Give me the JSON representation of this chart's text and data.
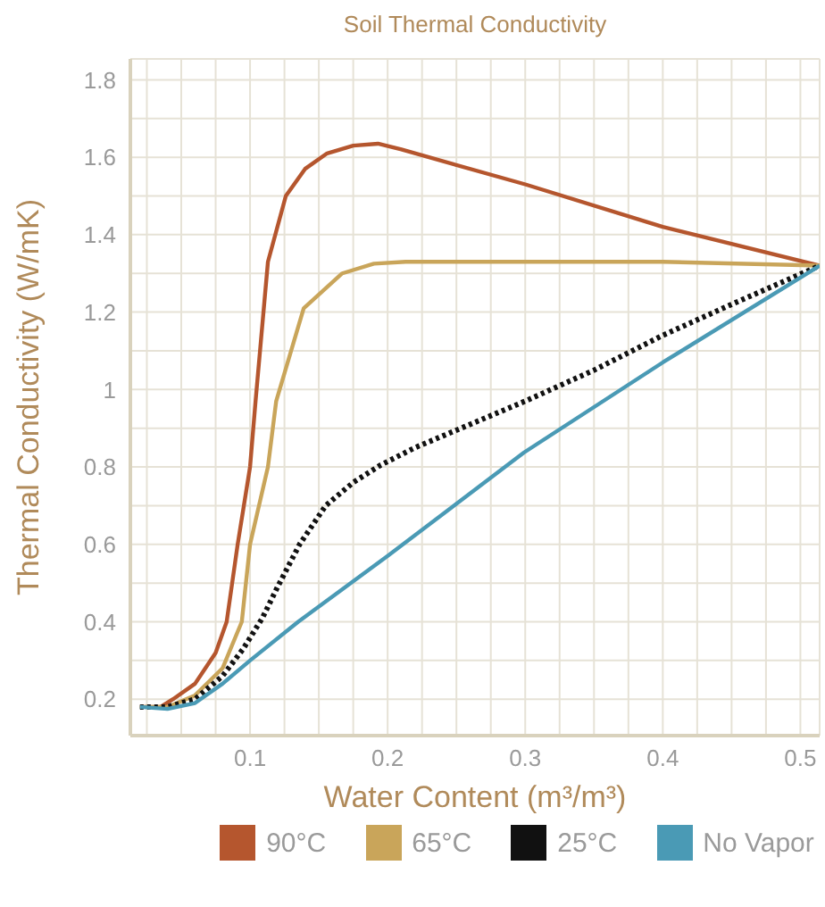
{
  "chart_data": {
    "type": "line",
    "title": "Soil Thermal Conductivity",
    "xlabel": "Water Content (m³/m³)",
    "ylabel": "Thermal Conductivity (W/mK)",
    "xlim": [
      0.013,
      0.514
    ],
    "ylim": [
      0.106,
      1.854
    ],
    "xticks": [
      {
        "value": 0.025,
        "label": null
      },
      {
        "value": 0.05,
        "label": null
      },
      {
        "value": 0.075,
        "label": null
      },
      0.1,
      {
        "value": 0.125,
        "label": null
      },
      {
        "value": 0.15,
        "label": null
      },
      {
        "value": 0.175,
        "label": null
      },
      0.2,
      {
        "value": 0.225,
        "label": null
      },
      {
        "value": 0.25,
        "label": null
      },
      {
        "value": 0.275,
        "label": null
      },
      0.3,
      {
        "value": 0.325,
        "label": null
      },
      {
        "value": 0.35,
        "label": null
      },
      {
        "value": 0.375,
        "label": null
      },
      0.4,
      {
        "value": 0.425,
        "label": null
      },
      {
        "value": 0.45,
        "label": null
      },
      {
        "value": 0.475,
        "label": null
      },
      0.5
    ],
    "yticks": [
      0.2,
      {
        "value": 0.3,
        "label": null
      },
      0.4,
      {
        "value": 0.5,
        "label": null
      },
      0.6,
      {
        "value": 0.7,
        "label": null
      },
      0.8,
      {
        "value": 0.9,
        "label": null
      },
      1,
      {
        "value": 1.1,
        "label": null
      },
      1.2,
      {
        "value": 1.3,
        "label": null
      },
      1.4,
      {
        "value": 1.5,
        "label": null
      },
      1.6,
      {
        "value": 1.7,
        "label": null
      },
      1.8
    ],
    "grid": true,
    "legend": "bottom",
    "series": [
      {
        "name": "90°C",
        "color": "#b5562e",
        "line_style": "solid",
        "x": [
          0.02,
          0.035,
          0.044,
          0.06,
          0.075,
          0.083,
          0.091,
          0.1,
          0.104,
          0.113,
          0.126,
          0.14,
          0.156,
          0.175,
          0.193,
          0.21,
          0.3,
          0.4,
          0.514
        ],
        "values": [
          0.18,
          0.18,
          0.2,
          0.24,
          0.32,
          0.4,
          0.6,
          0.8,
          0.97,
          1.33,
          1.5,
          1.57,
          1.61,
          1.63,
          1.635,
          1.62,
          1.53,
          1.42,
          1.32
        ]
      },
      {
        "name": "65°C",
        "color": "#c9a55a",
        "line_style": "solid",
        "x": [
          0.02,
          0.04,
          0.06,
          0.08,
          0.094,
          0.1,
          0.113,
          0.119,
          0.139,
          0.167,
          0.19,
          0.213,
          0.3,
          0.4,
          0.514
        ],
        "values": [
          0.18,
          0.18,
          0.21,
          0.28,
          0.4,
          0.6,
          0.8,
          0.97,
          1.21,
          1.3,
          1.325,
          1.33,
          1.33,
          1.33,
          1.32
        ]
      },
      {
        "name": "25°C",
        "color": "#111111",
        "line_style": "dotted",
        "x": [
          0.02,
          0.04,
          0.06,
          0.08,
          0.095,
          0.109,
          0.12,
          0.136,
          0.155,
          0.175,
          0.195,
          0.22,
          0.24,
          0.3,
          0.35,
          0.4,
          0.45,
          0.514
        ],
        "values": [
          0.18,
          0.18,
          0.2,
          0.26,
          0.33,
          0.41,
          0.49,
          0.6,
          0.7,
          0.76,
          0.805,
          0.85,
          0.88,
          0.97,
          1.05,
          1.14,
          1.22,
          1.32
        ]
      },
      {
        "name": "No Vapor",
        "color": "#4a9ab5",
        "line_style": "solid",
        "x": [
          0.02,
          0.04,
          0.06,
          0.08,
          0.1,
          0.135,
          0.2,
          0.299,
          0.4,
          0.514
        ],
        "values": [
          0.18,
          0.175,
          0.19,
          0.24,
          0.3,
          0.4,
          0.57,
          0.837,
          1.07,
          1.32
        ]
      }
    ]
  }
}
